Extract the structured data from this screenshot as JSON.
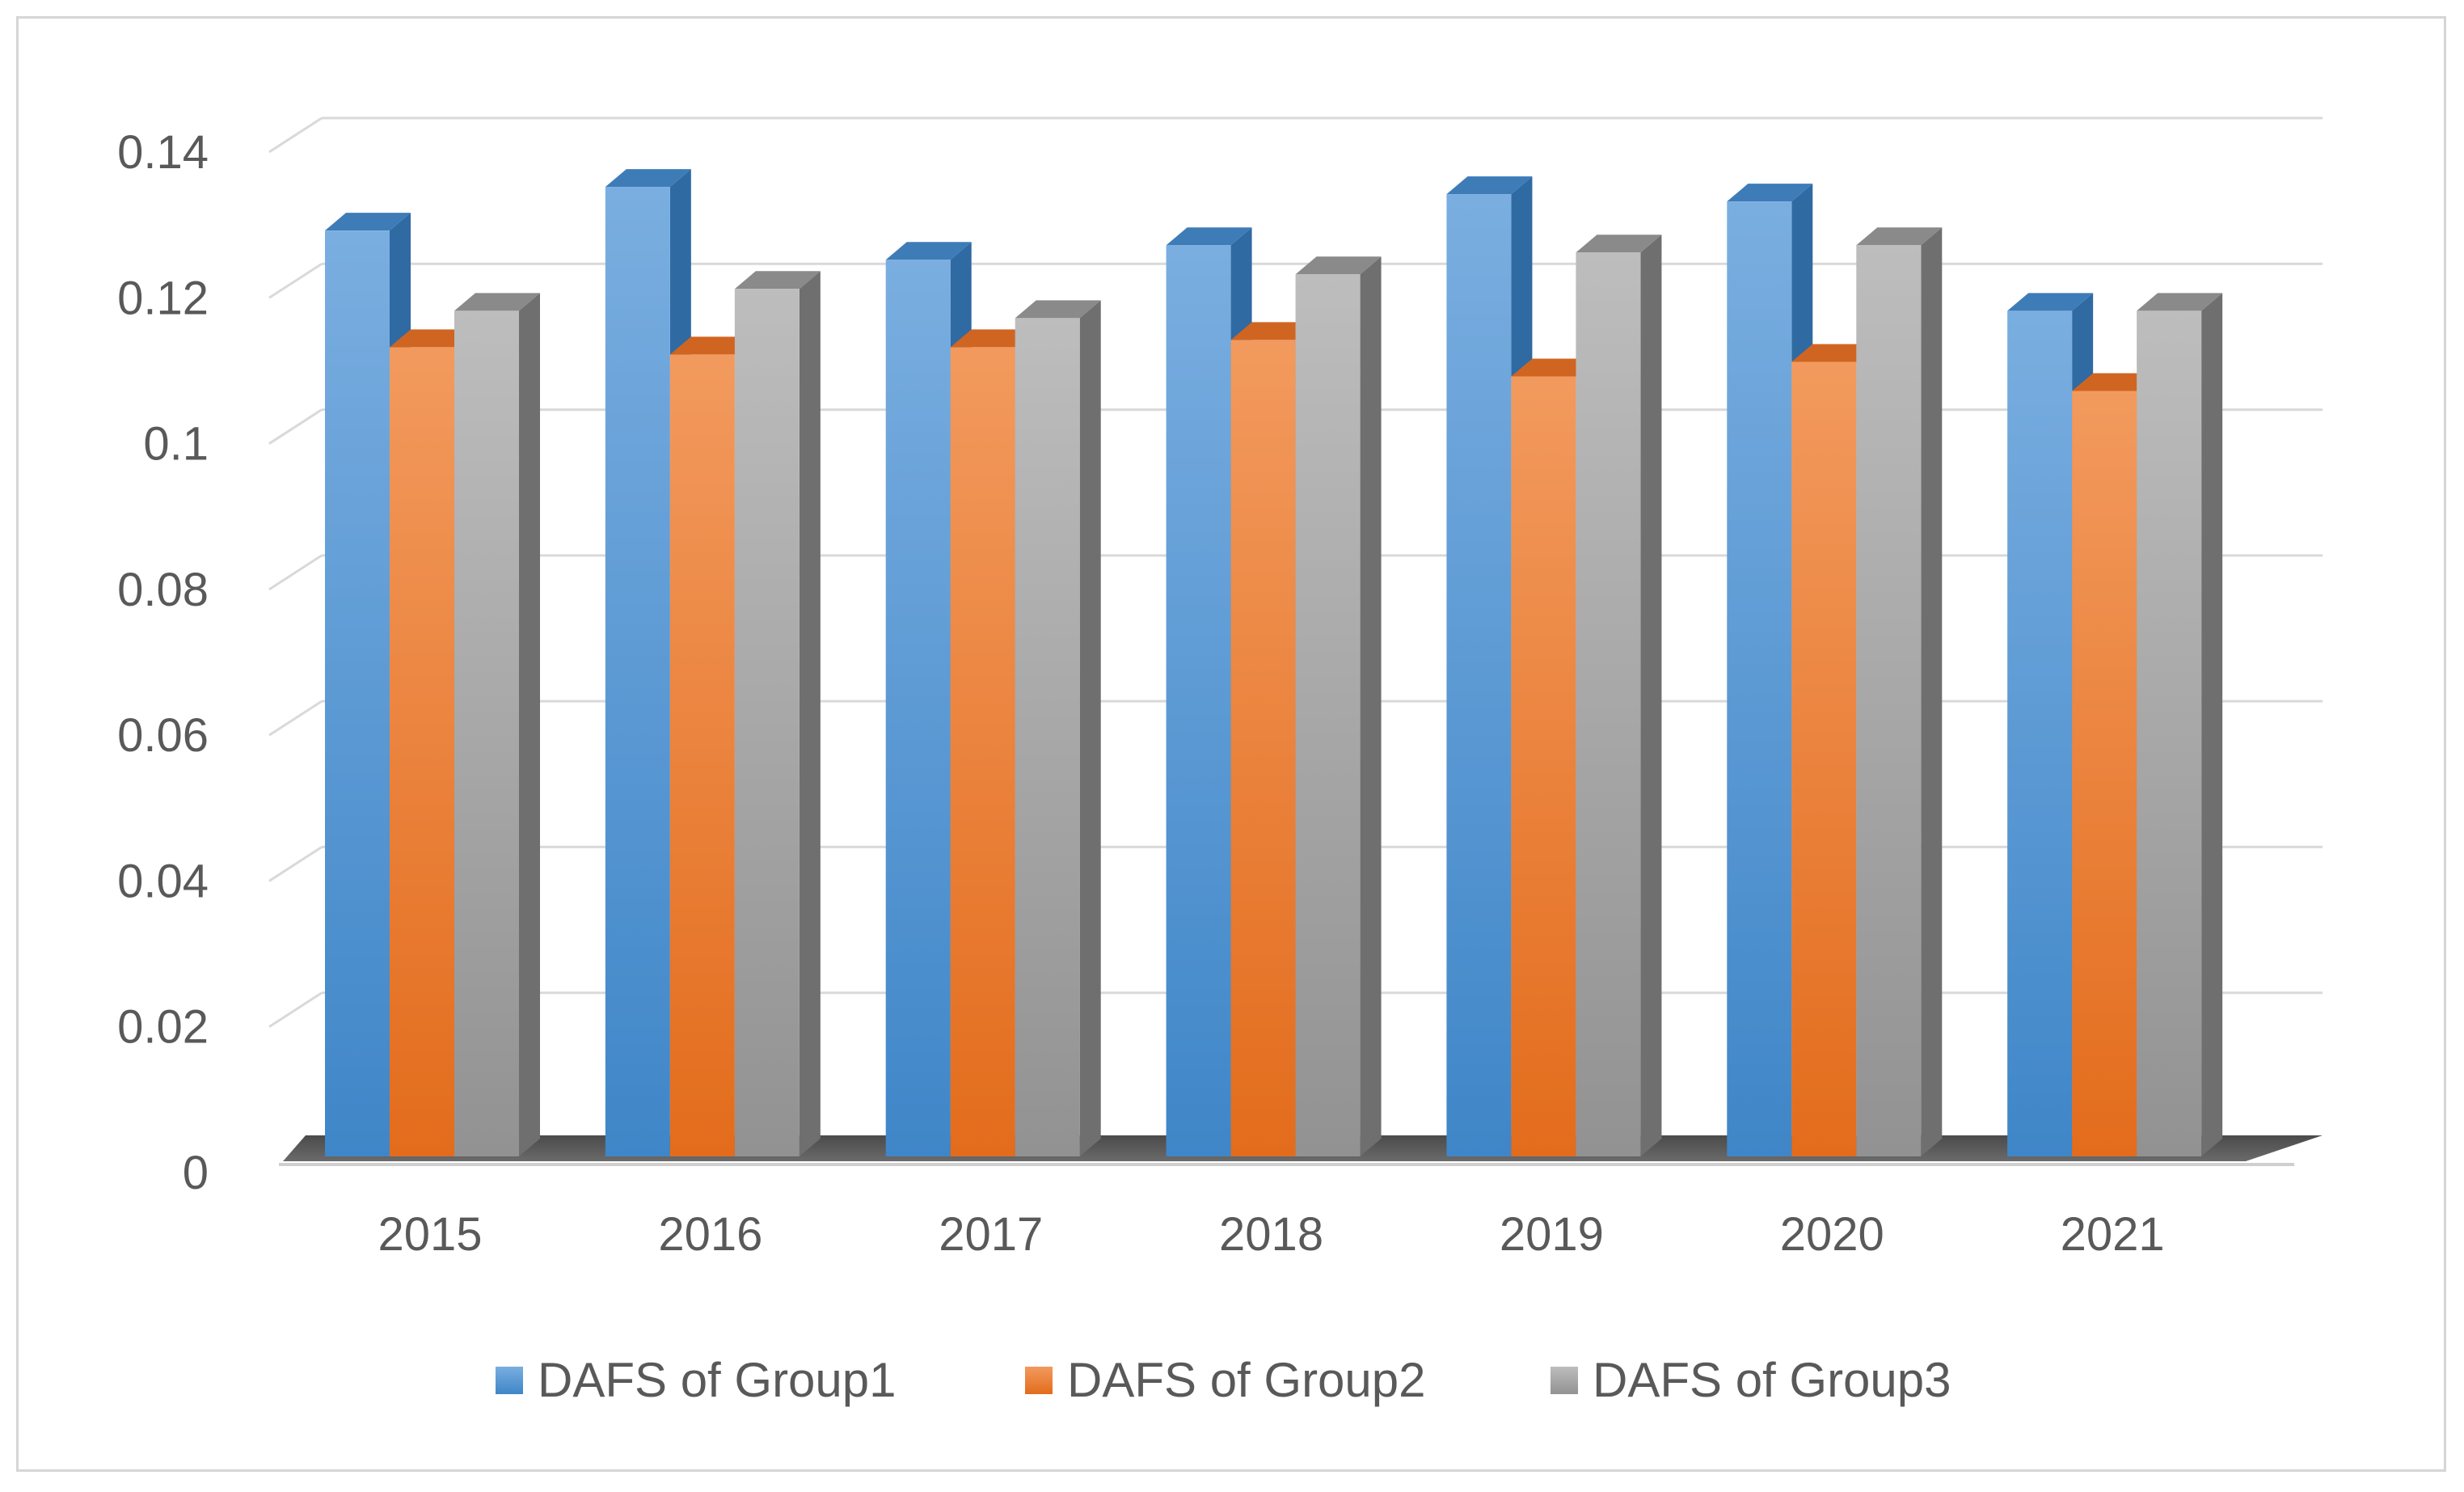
{
  "chart_data": {
    "type": "bar",
    "style": "3d-clustered-column",
    "title": "",
    "xlabel": "",
    "ylabel": "",
    "categories": [
      "2015",
      "2016",
      "2017",
      "2018",
      "2019",
      "2020",
      "2021"
    ],
    "ylim": [
      0,
      0.14
    ],
    "yticks": [
      "0",
      "0.02",
      "0.04",
      "0.06",
      "0.08",
      "0.1",
      "0.12",
      "0.14"
    ],
    "grid": true,
    "legend_position": "bottom",
    "series": [
      {
        "name": "DAFS of Group1",
        "color": "#5b9bd5",
        "values": [
          0.127,
          0.133,
          0.123,
          0.125,
          0.132,
          0.131,
          0.116
        ]
      },
      {
        "name": "DAFS of Group2",
        "color": "#ed7d31",
        "values": [
          0.111,
          0.11,
          0.111,
          0.112,
          0.107,
          0.109,
          0.105
        ]
      },
      {
        "name": "DAFS of Group3",
        "color": "#a5a5a5",
        "values": [
          0.116,
          0.119,
          0.115,
          0.121,
          0.124,
          0.125,
          0.116
        ]
      }
    ]
  }
}
